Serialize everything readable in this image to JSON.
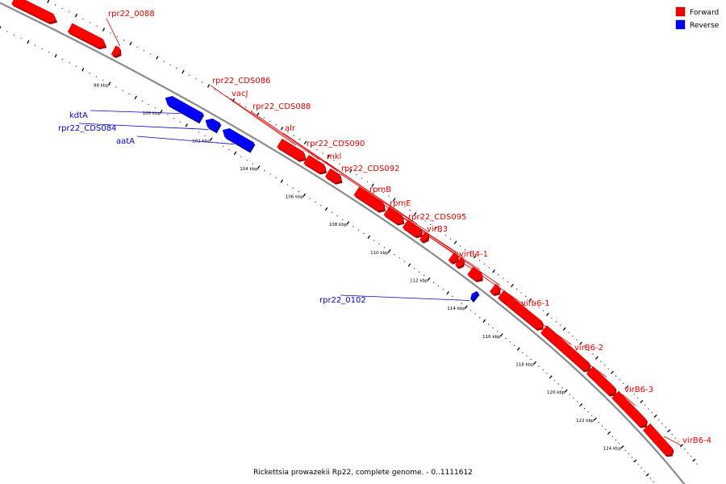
{
  "caption": "Rickettsia prowazekii Rp22, complete genome. - 0..1111612",
  "legend": [
    {
      "label": "Forward",
      "color": "#ff0000"
    },
    {
      "label": "Reverse",
      "color": "#0000ff"
    }
  ],
  "colors": {
    "forward": "#ff0000",
    "reverse": "#0000ff",
    "backbone": "#888888"
  },
  "ticks": [
    {
      "label": "98 kbp",
      "kbp": 98
    },
    {
      "label": "100 kbp",
      "kbp": 100
    },
    {
      "label": "102 kbp",
      "kbp": 102
    },
    {
      "label": "104 kbp",
      "kbp": 104
    },
    {
      "label": "106 kbp",
      "kbp": 106
    },
    {
      "label": "108 kbp",
      "kbp": 108
    },
    {
      "label": "110 kbp",
      "kbp": 110
    },
    {
      "label": "112 kbp",
      "kbp": 112
    },
    {
      "label": "114 kbp",
      "kbp": 114
    },
    {
      "label": "116 kbp",
      "kbp": 116
    },
    {
      "label": "118 kbp",
      "kbp": 118
    },
    {
      "label": "120 kbp",
      "kbp": 120
    },
    {
      "label": "122 kbp",
      "kbp": 122
    },
    {
      "label": "124 kbp",
      "kbp": 124
    }
  ],
  "features": [
    {
      "name": "",
      "strand": "forward",
      "start": 94.0,
      "end": 95.5
    },
    {
      "name": "",
      "strand": "forward",
      "start": 96.0,
      "end": 97.3
    },
    {
      "name": "rpr22_0088",
      "strand": "forward",
      "start": 97.6,
      "end": 97.85
    },
    {
      "name": "kdtA",
      "strand": "reverse",
      "start": 99.9,
      "end": 101.3
    },
    {
      "name": "rpr22_CDS084",
      "strand": "reverse",
      "start": 101.5,
      "end": 102.0
    },
    {
      "name": "aatA",
      "strand": "reverse",
      "start": 102.2,
      "end": 103.4
    },
    {
      "name": "rpr22_CDS086",
      "strand": "forward",
      "start": 104.2,
      "end": 105.3
    },
    {
      "name": "vacJ",
      "strand": "forward",
      "start": 105.35,
      "end": 106.2
    },
    {
      "name": "rpr22_CDS088",
      "strand": "forward",
      "start": 106.3,
      "end": 106.9
    },
    {
      "name": "alr",
      "strand": "forward",
      "start": 107.6,
      "end": 108.9
    },
    {
      "name": "rpr22_CDS090",
      "strand": "forward",
      "start": 109.0,
      "end": 109.8
    },
    {
      "name": "mkl",
      "strand": "forward",
      "start": 109.9,
      "end": 110.7
    },
    {
      "name": "rpr22_CDS092",
      "strand": "forward",
      "start": 110.75,
      "end": 111.0
    },
    {
      "name": "rpmB",
      "strand": "forward",
      "start": 112.2,
      "end": 112.5
    },
    {
      "name": "rpmE",
      "strand": "forward",
      "start": 112.55,
      "end": 112.8
    },
    {
      "name": "rpr22_CDS095",
      "strand": "forward",
      "start": 113.2,
      "end": 113.8
    },
    {
      "name": "rpr22_0102",
      "strand": "reverse",
      "start": 113.85,
      "end": 114.05
    },
    {
      "name": "virB3",
      "strand": "forward",
      "start": 114.4,
      "end": 114.75
    },
    {
      "name": "virB4-1",
      "strand": "forward",
      "start": 114.85,
      "end": 117.2
    },
    {
      "name": "virb6-1",
      "strand": "forward",
      "start": 117.3,
      "end": 120.1
    },
    {
      "name": "virB6-2",
      "strand": "forward",
      "start": 120.15,
      "end": 121.8
    },
    {
      "name": "virB6-3",
      "strand": "forward",
      "start": 121.85,
      "end": 124.0
    },
    {
      "name": "virB6-4",
      "strand": "forward",
      "start": 124.1,
      "end": 126.0
    }
  ]
}
